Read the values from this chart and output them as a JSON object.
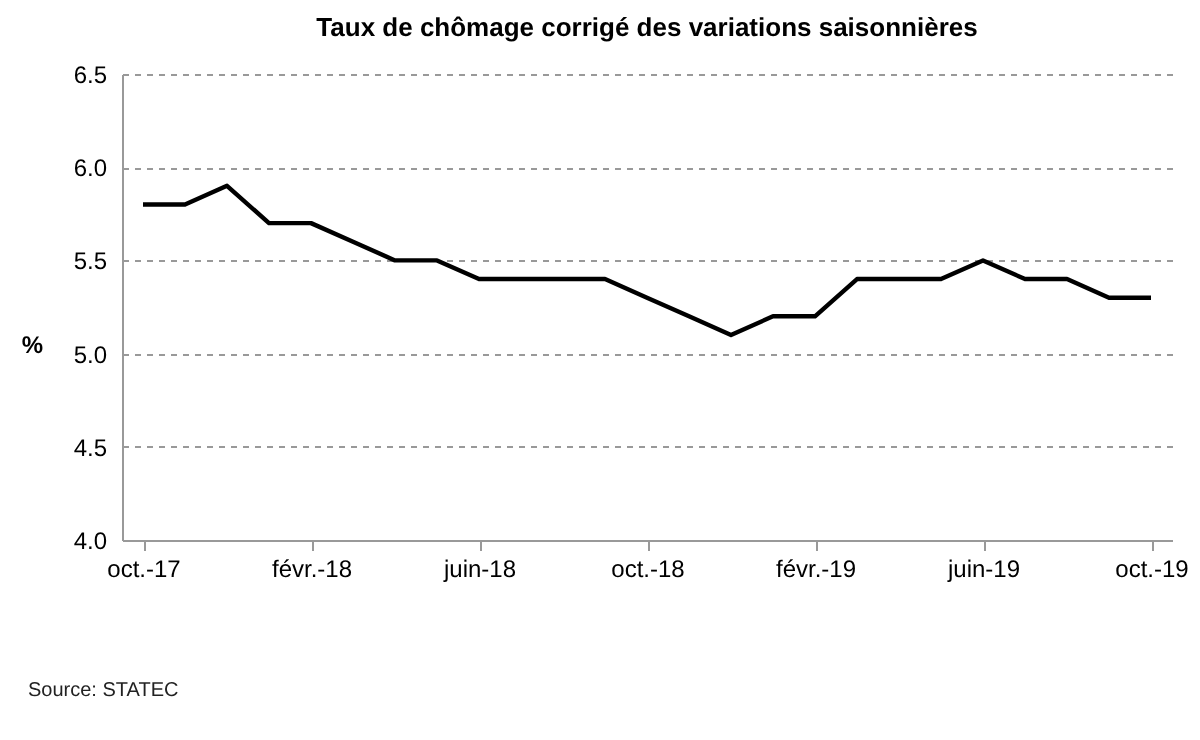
{
  "chart_data": {
    "type": "line",
    "title": "Taux de chômage corrigé des variations saisonnières",
    "ylabel": "%",
    "categories": [
      "oct.-17",
      null,
      null,
      null,
      "févr.-18",
      null,
      null,
      null,
      "juin-18",
      null,
      null,
      null,
      "oct.-18",
      null,
      null,
      null,
      "févr.-19",
      null,
      null,
      null,
      "juin-19",
      null,
      null,
      null,
      "oct.-19"
    ],
    "series": [
      {
        "color": "#000000",
        "values": [
          5.8,
          5.8,
          5.9,
          5.7,
          5.7,
          5.6,
          5.5,
          5.5,
          5.4,
          5.4,
          5.4,
          5.4,
          5.3,
          5.2,
          5.1,
          5.2,
          5.2,
          5.4,
          5.4,
          5.4,
          5.5,
          5.4,
          5.4,
          5.3,
          5.3
        ]
      }
    ],
    "ylim": [
      4.0,
      6.5
    ],
    "yticks": [
      {
        "value": 4.0,
        "label": "4.0"
      },
      {
        "value": 4.5,
        "label": "4.5"
      },
      {
        "value": 5.0,
        "label": "5.0"
      },
      {
        "value": 5.5,
        "label": "5.5"
      },
      {
        "value": 6.0,
        "label": "6.0"
      },
      {
        "value": 6.5,
        "label": "6.5"
      }
    ],
    "grid": "y",
    "line_style": "solid",
    "marker": "none",
    "annotations": [
      "Source: STATEC"
    ]
  }
}
